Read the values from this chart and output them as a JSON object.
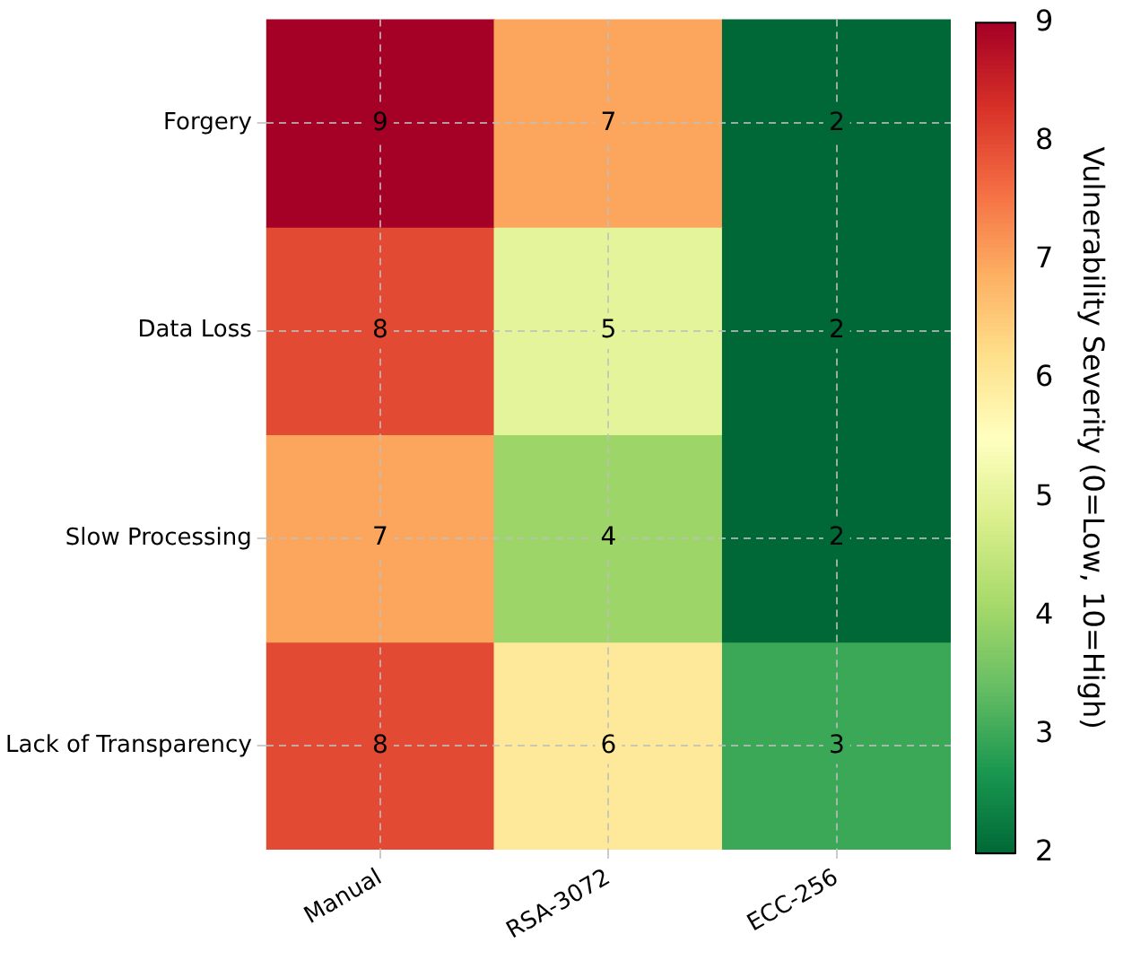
{
  "chart_data": {
    "type": "heatmap",
    "categories": [
      "Manual",
      "RSA-3072",
      "ECC-256"
    ],
    "y_categories": [
      "Forgery",
      "Data Loss",
      "Slow Processing",
      "Lack of Transparency"
    ],
    "cells": [
      [
        9,
        7,
        2
      ],
      [
        8,
        5,
        2
      ],
      [
        7,
        4,
        2
      ],
      [
        8,
        6,
        3
      ]
    ],
    "clim": [
      2,
      9
    ],
    "cticks": [
      2,
      3,
      4,
      5,
      6,
      7,
      8,
      9
    ],
    "clabel": "Vulnerability Severity (0=Low, 10=High)",
    "data_labels": true,
    "grid": true
  }
}
